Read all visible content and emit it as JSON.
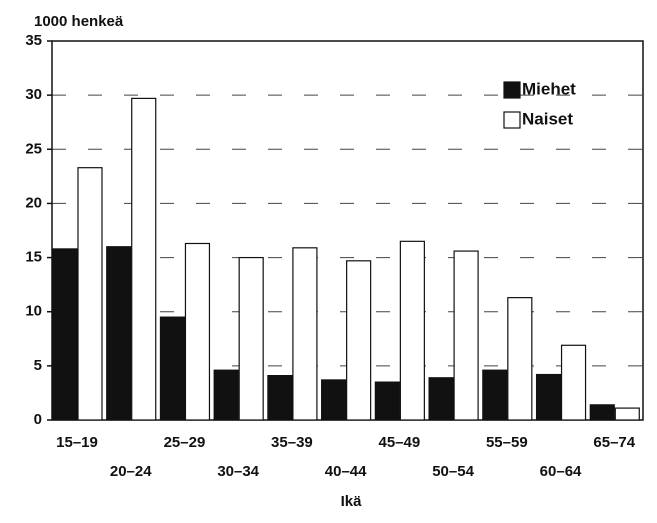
{
  "chart_data": {
    "type": "bar",
    "y_axis_label": "1000 henkeä",
    "x_axis_label": "Ikä",
    "categories": [
      "15–19",
      "20–24",
      "25–29",
      "30–34",
      "35–39",
      "40–44",
      "45–49",
      "50–54",
      "55–59",
      "60–64",
      "65–74"
    ],
    "series": [
      {
        "name": "Miehet",
        "color": "#111111",
        "values": [
          15.8,
          16,
          9.5,
          4.6,
          4.1,
          3.7,
          3.5,
          3.9,
          4.6,
          4.2,
          1.4
        ]
      },
      {
        "name": "Naiset",
        "color": "#ffffff",
        "values": [
          23.3,
          29.7,
          16.3,
          15,
          15.9,
          14.7,
          16.5,
          15.6,
          11.3,
          6.9,
          1.1
        ]
      }
    ],
    "ylim": [
      0,
      35
    ],
    "yticks": [
      0,
      5,
      10,
      15,
      20,
      25,
      30,
      35
    ],
    "grid": true,
    "legend": "upper right"
  }
}
